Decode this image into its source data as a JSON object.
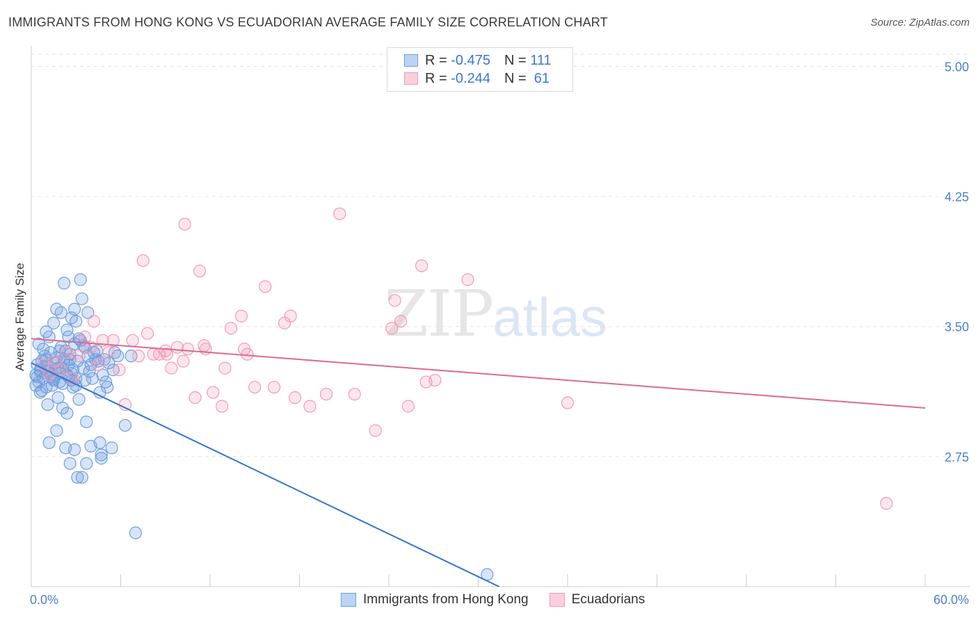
{
  "header": {
    "title": "IMMIGRANTS FROM HONG KONG VS ECUADORIAN AVERAGE FAMILY SIZE CORRELATION CHART",
    "source": "Source: ZipAtlas.com"
  },
  "legend_box": {
    "rows": [
      {
        "r_label": "R = ",
        "r_value": "-0.475",
        "n_label": "N = ",
        "n_value": "111",
        "color": "#6f9fe0"
      },
      {
        "r_label": "R = ",
        "r_value": "-0.244",
        "n_label": "N = ",
        "n_value": " 61",
        "color": "#f19ab5"
      }
    ]
  },
  "watermark": {
    "zip": "ZIP",
    "atlas": "atlas"
  },
  "bottom_legend": {
    "items": [
      {
        "label": "Immigrants from Hong Kong",
        "color": "#6f9fe0"
      },
      {
        "label": "Ecuadorians",
        "color": "#f19ab5"
      }
    ]
  },
  "chart_data": {
    "type": "scatter",
    "title": "IMMIGRANTS FROM HONG KONG VS ECUADORIAN AVERAGE FAMILY SIZE CORRELATION CHART",
    "xlabel": "",
    "ylabel": "Average Family Size",
    "xlim": [
      0,
      60
    ],
    "ylim": [
      2.0,
      5.07
    ],
    "x_tick_labels": [
      "0.0%",
      "60.0%"
    ],
    "y_ticks": [
      5.0,
      4.25,
      3.5,
      2.75
    ],
    "y_tick_labels": [
      "5.00",
      "4.25",
      "3.50",
      "2.75"
    ],
    "grid": true,
    "series": [
      {
        "name": "Immigrants from Hong Kong",
        "color": "#6f9fe0",
        "trend": {
          "x": [
            0,
            31.4
          ],
          "y": [
            3.29,
            2.0
          ]
        },
        "points": [
          [
            0.3,
            3.22
          ],
          [
            0.4,
            3.28
          ],
          [
            0.5,
            3.18
          ],
          [
            0.6,
            3.25
          ],
          [
            0.7,
            3.3
          ],
          [
            0.8,
            3.2
          ],
          [
            0.9,
            3.33
          ],
          [
            1.0,
            3.15
          ],
          [
            1.1,
            3.27
          ],
          [
            1.2,
            3.24
          ],
          [
            1.3,
            3.35
          ],
          [
            1.4,
            3.21
          ],
          [
            1.5,
            3.19
          ],
          [
            1.6,
            3.29
          ],
          [
            1.7,
            3.32
          ],
          [
            1.8,
            3.26
          ],
          [
            1.9,
            3.23
          ],
          [
            2.0,
            3.38
          ],
          [
            2.1,
            3.17
          ],
          [
            2.2,
            3.31
          ],
          [
            2.3,
            3.36
          ],
          [
            2.4,
            3.22
          ],
          [
            2.5,
            3.28
          ],
          [
            2.6,
            3.34
          ],
          [
            2.7,
            3.19
          ],
          [
            2.8,
            3.25
          ],
          [
            2.9,
            3.4
          ],
          [
            3.0,
            3.16
          ],
          [
            3.1,
            3.3
          ],
          [
            3.2,
            3.43
          ],
          [
            0.5,
            3.4
          ],
          [
            0.8,
            3.37
          ],
          [
            1.0,
            3.47
          ],
          [
            1.2,
            3.44
          ],
          [
            1.5,
            3.52
          ],
          [
            1.7,
            3.6
          ],
          [
            2.0,
            3.58
          ],
          [
            2.4,
            3.48
          ],
          [
            2.7,
            3.55
          ],
          [
            3.0,
            3.53
          ],
          [
            3.3,
            3.42
          ],
          [
            3.6,
            3.38
          ],
          [
            3.8,
            3.33
          ],
          [
            4.0,
            3.28
          ],
          [
            4.2,
            3.35
          ],
          [
            4.5,
            3.3
          ],
          [
            4.8,
            3.22
          ],
          [
            5.0,
            3.18
          ],
          [
            5.5,
            3.25
          ],
          [
            5.8,
            3.33
          ],
          [
            2.2,
            3.75
          ],
          [
            3.3,
            3.77
          ],
          [
            3.4,
            3.66
          ],
          [
            2.9,
            3.6
          ],
          [
            3.8,
            3.58
          ],
          [
            2.5,
            3.44
          ],
          [
            1.9,
            3.36
          ],
          [
            2.6,
            3.31
          ],
          [
            3.5,
            3.26
          ],
          [
            4.1,
            3.2
          ],
          [
            0.6,
            3.12
          ],
          [
            1.1,
            3.05
          ],
          [
            1.8,
            3.09
          ],
          [
            2.1,
            3.03
          ],
          [
            2.4,
            3.0
          ],
          [
            3.2,
            3.08
          ],
          [
            3.7,
            2.95
          ],
          [
            4.6,
            3.12
          ],
          [
            5.1,
            3.15
          ],
          [
            6.3,
            2.93
          ],
          [
            1.2,
            2.83
          ],
          [
            1.7,
            2.9
          ],
          [
            2.3,
            2.8
          ],
          [
            2.6,
            2.71
          ],
          [
            2.9,
            2.79
          ],
          [
            3.1,
            2.63
          ],
          [
            3.4,
            2.63
          ],
          [
            3.7,
            2.71
          ],
          [
            4.0,
            2.81
          ],
          [
            4.6,
            2.83
          ],
          [
            4.7,
            2.74
          ],
          [
            4.7,
            2.76
          ],
          [
            5.4,
            2.8
          ],
          [
            7.0,
            2.31
          ],
          [
            30.6,
            2.07
          ],
          [
            0.4,
            3.21
          ],
          [
            0.9,
            3.27
          ],
          [
            1.4,
            3.16
          ],
          [
            1.9,
            3.18
          ],
          [
            2.8,
            3.15
          ],
          [
            3.6,
            3.19
          ],
          [
            4.3,
            3.31
          ],
          [
            5.2,
            3.29
          ],
          [
            5.6,
            3.35
          ],
          [
            6.7,
            3.33
          ],
          [
            0.7,
            3.13
          ],
          [
            1.3,
            3.22
          ],
          [
            1.6,
            3.25
          ],
          [
            2.2,
            3.29
          ],
          [
            2.5,
            3.21
          ],
          [
            3.0,
            3.2
          ],
          [
            3.9,
            3.24
          ],
          [
            4.4,
            3.36
          ],
          [
            0.3,
            3.16
          ],
          [
            0.6,
            3.24
          ],
          [
            1.0,
            3.31
          ],
          [
            1.5,
            3.2
          ],
          [
            2.0,
            3.26
          ],
          [
            2.7,
            3.23
          ],
          [
            3.5,
            3.39
          ],
          [
            4.9,
            3.31
          ]
        ]
      },
      {
        "name": "Ecuadorians",
        "color": "#f19ab5",
        "trend": {
          "x": [
            0,
            60
          ],
          "y": [
            3.43,
            3.03
          ]
        },
        "points": [
          [
            0.8,
            3.28
          ],
          [
            1.2,
            3.22
          ],
          [
            1.6,
            3.3
          ],
          [
            2.0,
            3.25
          ],
          [
            2.4,
            3.35
          ],
          [
            2.8,
            3.2
          ],
          [
            3.2,
            3.33
          ],
          [
            3.6,
            3.44
          ],
          [
            4.0,
            3.38
          ],
          [
            4.2,
            3.53
          ],
          [
            4.5,
            3.28
          ],
          [
            4.8,
            3.42
          ],
          [
            5.2,
            3.35
          ],
          [
            5.5,
            3.42
          ],
          [
            5.9,
            3.25
          ],
          [
            6.3,
            3.05
          ],
          [
            6.8,
            3.42
          ],
          [
            7.2,
            3.33
          ],
          [
            7.5,
            3.88
          ],
          [
            7.8,
            3.46
          ],
          [
            8.2,
            3.34
          ],
          [
            8.6,
            3.34
          ],
          [
            9.0,
            3.36
          ],
          [
            9.4,
            3.26
          ],
          [
            9.8,
            3.38
          ],
          [
            10.2,
            3.3
          ],
          [
            10.5,
            3.37
          ],
          [
            11.0,
            3.09
          ],
          [
            11.3,
            3.82
          ],
          [
            11.7,
            3.37
          ],
          [
            12.2,
            3.12
          ],
          [
            12.8,
            3.04
          ],
          [
            13.0,
            3.26
          ],
          [
            13.4,
            3.49
          ],
          [
            14.1,
            3.56
          ],
          [
            14.5,
            3.34
          ],
          [
            15.0,
            3.15
          ],
          [
            15.7,
            3.73
          ],
          [
            16.3,
            3.15
          ],
          [
            17.0,
            3.52
          ],
          [
            17.4,
            3.56
          ],
          [
            17.7,
            3.09
          ],
          [
            18.7,
            3.04
          ],
          [
            19.8,
            3.11
          ],
          [
            20.7,
            4.15
          ],
          [
            21.7,
            3.11
          ],
          [
            23.1,
            2.9
          ],
          [
            24.2,
            3.49
          ],
          [
            24.4,
            3.65
          ],
          [
            24.8,
            3.53
          ],
          [
            25.3,
            3.04
          ],
          [
            26.2,
            3.85
          ],
          [
            26.5,
            3.18
          ],
          [
            27.1,
            3.19
          ],
          [
            29.3,
            3.77
          ],
          [
            9.1,
            3.34
          ],
          [
            11.6,
            3.39
          ],
          [
            14.3,
            3.37
          ],
          [
            36.0,
            3.06
          ],
          [
            57.4,
            2.48
          ],
          [
            10.3,
            4.09
          ]
        ]
      }
    ]
  }
}
